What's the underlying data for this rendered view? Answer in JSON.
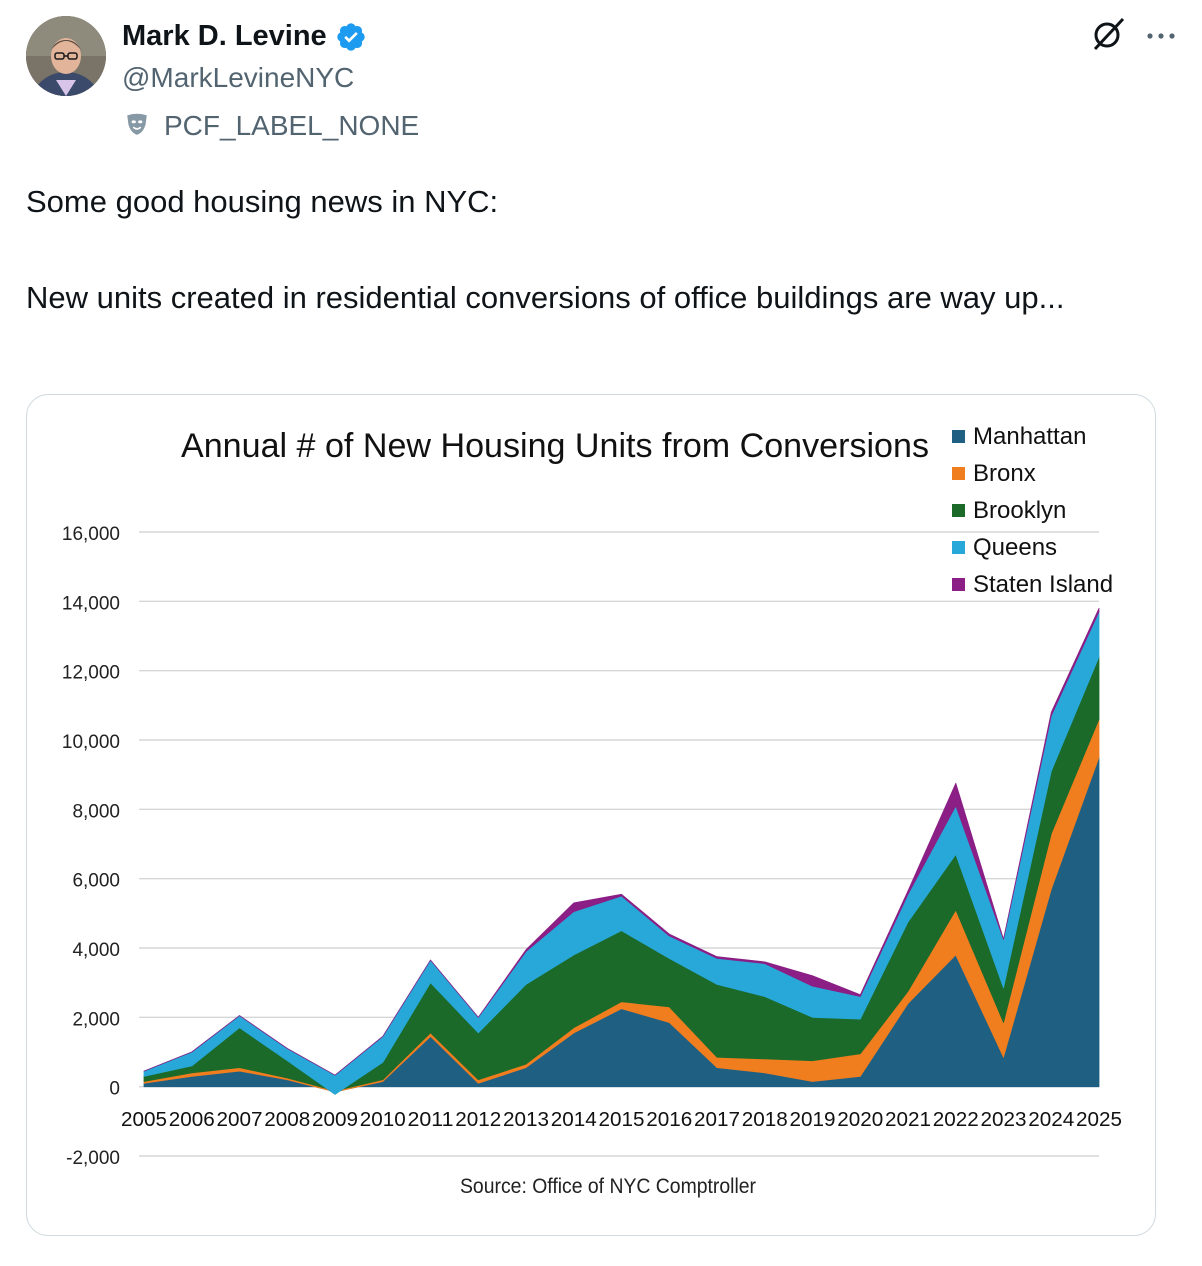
{
  "tweet": {
    "author_name": "Mark D. Levine",
    "handle": "@MarkLevineNYC",
    "label": "PCF_LABEL_NONE",
    "text_line1": "Some good housing news in NYC:",
    "text_line2": "New units created in residential conversions of office buildings are way up...",
    "icons": [
      "avatar",
      "verified-badge-icon",
      "grok-icon",
      "more-icon",
      "label-mask-icon"
    ],
    "colors": {
      "verified": "#1d9bf0",
      "secondary_text": "#536471"
    }
  },
  "chart_data": {
    "type": "area",
    "title": "Annual # of New Housing Units from Conversions",
    "source": "Source: Office of NYC Comptroller",
    "x": [
      "2005",
      "2006",
      "2007",
      "2008",
      "2009",
      "2010",
      "2011",
      "2012",
      "2013",
      "2014",
      "2015",
      "2016",
      "2017",
      "2018",
      "2019",
      "2020",
      "2021",
      "2022",
      "2023",
      "2024",
      "2025"
    ],
    "ylim": [
      -2000,
      16000
    ],
    "yticks": [
      {
        "v": 16000,
        "label": "16,000"
      },
      {
        "v": 14000,
        "label": "14,000"
      },
      {
        "v": 12000,
        "label": "12,000"
      },
      {
        "v": 10000,
        "label": "10,000"
      },
      {
        "v": 8000,
        "label": "8,000"
      },
      {
        "v": 6000,
        "label": "6,000"
      },
      {
        "v": 4000,
        "label": "4,000"
      },
      {
        "v": 2000,
        "label": "2,000"
      },
      {
        "v": 0,
        "label": "0"
      },
      {
        "v": -2000,
        "label": "-2,000"
      }
    ],
    "grid": true,
    "legend_position": "top-right",
    "series": [
      {
        "name": "Manhattan",
        "color": "#1f5f82",
        "values": [
          100,
          300,
          450,
          200,
          -150,
          150,
          1450,
          100,
          550,
          1550,
          2250,
          1850,
          550,
          400,
          150,
          300,
          2400,
          3800,
          850,
          5700,
          9500
        ]
      },
      {
        "name": "Bronx",
        "color": "#f07d1e",
        "values": [
          50,
          100,
          100,
          50,
          30,
          50,
          100,
          100,
          100,
          150,
          200,
          450,
          300,
          400,
          600,
          650,
          350,
          1300,
          1000,
          1600,
          1100
        ]
      },
      {
        "name": "Brooklyn",
        "color": "#1b6a2a",
        "values": [
          150,
          200,
          1150,
          500,
          -100,
          500,
          1450,
          1350,
          2300,
          2100,
          2050,
          1400,
          2100,
          1800,
          1250,
          1000,
          2000,
          1600,
          1000,
          1800,
          1800
        ]
      },
      {
        "name": "Queens",
        "color": "#28a8d8",
        "values": [
          150,
          400,
          350,
          350,
          550,
          750,
          650,
          450,
          950,
          1250,
          1000,
          650,
          750,
          950,
          900,
          650,
          800,
          1400,
          1400,
          1600,
          1300
        ]
      },
      {
        "name": "Staten Island",
        "color": "#8b1f86",
        "values": [
          0,
          0,
          0,
          0,
          0,
          0,
          0,
          0,
          50,
          250,
          50,
          50,
          50,
          50,
          300,
          50,
          100,
          650,
          0,
          100,
          100
        ]
      }
    ]
  }
}
